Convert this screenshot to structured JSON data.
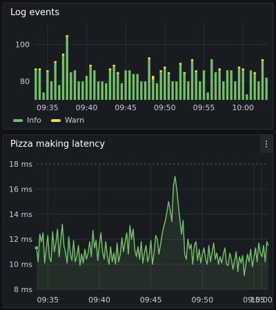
{
  "panels": {
    "log_events": {
      "title": "Log events",
      "legend": [
        {
          "label": "Info",
          "color": "#73bf69"
        },
        {
          "label": "Warn",
          "color": "#fade2a"
        }
      ]
    },
    "latency": {
      "title": "Pizza making latency",
      "menu_icon": "vertical-ellipsis-icon"
    }
  },
  "chart_data": [
    {
      "type": "bar",
      "title": "Log events",
      "x_ticks": [
        "09:35",
        "09:40",
        "09:45",
        "09:50",
        "09:55",
        "10:00"
      ],
      "y_ticks": [
        "80",
        "100"
      ],
      "ylim": [
        70,
        108
      ],
      "series": [
        {
          "name": "Info",
          "color": "#73bf69",
          "values": [
            86,
            86,
            74,
            85,
            80,
            90,
            78,
            94,
            104,
            85,
            86,
            80,
            80,
            83,
            88,
            86,
            80,
            80,
            79,
            86,
            88,
            84,
            79,
            86,
            86,
            84,
            84,
            80,
            80,
            92,
            81,
            79,
            85,
            87,
            84,
            80,
            80,
            89,
            84,
            80,
            91,
            85,
            80,
            86,
            74,
            92,
            85,
            86,
            80,
            86,
            86,
            80,
            87,
            86,
            73,
            86,
            84,
            80,
            91,
            82
          ]
        },
        {
          "name": "Warn",
          "color": "#fade2a",
          "values": [
            1,
            1,
            0,
            1,
            0,
            1,
            0,
            1,
            1,
            0,
            0,
            0,
            0,
            0,
            1,
            0,
            0,
            0,
            0,
            1,
            1,
            1,
            0,
            0,
            0,
            0,
            0,
            0,
            0,
            1,
            2,
            0,
            1,
            1,
            1,
            0,
            0,
            1,
            1,
            0,
            1,
            1,
            0,
            0,
            0,
            0,
            0,
            1,
            0,
            0,
            0,
            0,
            1,
            1,
            0,
            0,
            1,
            0,
            1,
            0
          ]
        }
      ],
      "grid": true,
      "legend": "bottom-left"
    },
    {
      "type": "line",
      "title": "Pizza making latency",
      "x_ticks": [
        "09:35",
        "09:40",
        "09:45",
        "09:50",
        "09:55",
        "10:00"
      ],
      "y_ticks": [
        "8 ms",
        "10 ms",
        "12 ms",
        "14 ms",
        "16 ms",
        "18 ms"
      ],
      "ylim": [
        8,
        18
      ],
      "series": [
        {
          "name": "latency",
          "color": "#73bf69",
          "values": [
            11.3,
            10.2,
            12.4,
            11.8,
            12.5,
            10.1,
            11.2,
            12.3,
            10.5,
            10.2,
            12.6,
            11.0,
            11.7,
            12.8,
            10.6,
            11.9,
            13.2,
            11.5,
            10.9,
            10.1,
            12.2,
            10.8,
            10.3,
            11.9,
            10.2,
            10.6,
            11.5,
            9.9,
            10.8,
            10.1,
            11.2,
            10.4,
            10.9,
            11.8,
            10.6,
            12.7,
            11.3,
            11.9,
            10.3,
            11.6,
            12.5,
            11.0,
            10.4,
            11.8,
            10.6,
            10.0,
            11.4,
            10.2,
            10.9,
            10.0,
            11.7,
            10.2,
            10.8,
            12.1,
            11.0,
            11.8,
            12.5,
            10.8,
            13.1,
            12.0,
            12.8,
            11.2,
            10.6,
            11.4,
            10.4,
            11.8,
            10.1,
            10.9,
            11.5,
            10.2,
            10.7,
            11.9,
            10.0,
            10.9,
            12.3,
            12.0,
            10.8,
            11.6,
            12.4,
            13.0,
            13.5,
            14.2,
            15.0,
            14.3,
            13.4,
            16.2,
            17.0,
            16.1,
            14.8,
            13.6,
            12.4,
            13.5,
            10.8,
            10.4,
            12.0,
            11.2,
            11.6,
            10.0,
            11.5,
            11.8,
            10.3,
            11.2,
            10.1,
            10.8,
            11.3,
            10.4,
            10.0,
            11.5,
            10.2,
            10.9,
            11.7,
            10.4,
            10.9,
            10.0,
            10.6,
            10.1,
            10.8,
            11.3,
            10.0,
            9.9,
            10.9,
            10.4,
            9.6,
            10.3,
            11.0,
            9.4,
            10.6,
            10.1,
            10.7,
            9.1,
            10.0,
            10.8,
            10.2,
            11.2,
            9.8,
            10.5,
            11.3,
            10.2,
            11.7,
            10.9,
            10.6,
            11.5,
            10.2,
            11.8,
            11.5
          ]
        }
      ],
      "grid": true,
      "threshold_line": true
    }
  ]
}
